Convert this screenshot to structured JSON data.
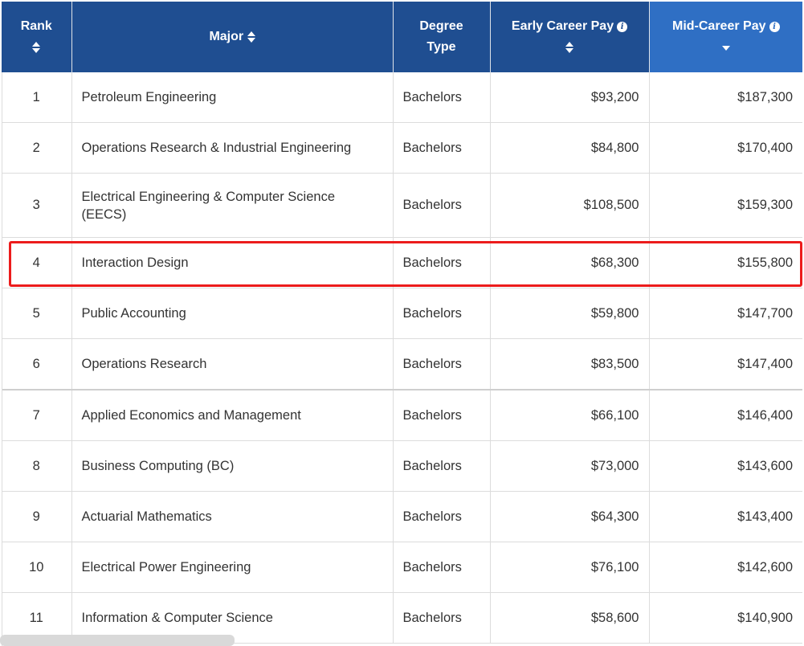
{
  "table": {
    "headers": {
      "rank": "Rank",
      "major": "Major",
      "degree_type_line1": "Degree",
      "degree_type_line2": "Type",
      "early_career_pay": "Early Career Pay",
      "mid_career_pay": "Mid-Career Pay"
    },
    "sorted_column": "Mid-Career Pay",
    "sort_direction": "descending",
    "highlighted_rank": "4",
    "highlight_color": "#ec1c1c",
    "header_color": "#1f4e91",
    "active_header_color": "#2f6fc4",
    "rows": [
      {
        "rank": "1",
        "major": "Petroleum Engineering",
        "degree_type": "Bachelors",
        "early": "$93,200",
        "mid": "$187,300"
      },
      {
        "rank": "2",
        "major": "Operations Research & Industrial Engineering",
        "degree_type": "Bachelors",
        "early": "$84,800",
        "mid": "$170,400"
      },
      {
        "rank": "3",
        "major": "Electrical Engineering & Computer Science (EECS)",
        "degree_type": "Bachelors",
        "early": "$108,500",
        "mid": "$159,300"
      },
      {
        "rank": "4",
        "major": "Interaction Design",
        "degree_type": "Bachelors",
        "early": "$68,300",
        "mid": "$155,800"
      },
      {
        "rank": "5",
        "major": "Public Accounting",
        "degree_type": "Bachelors",
        "early": "$59,800",
        "mid": "$147,700"
      },
      {
        "rank": "6",
        "major": "Operations Research",
        "degree_type": "Bachelors",
        "early": "$83,500",
        "mid": "$147,400"
      },
      {
        "rank": "7",
        "major": "Applied Economics and Management",
        "degree_type": "Bachelors",
        "early": "$66,100",
        "mid": "$146,400"
      },
      {
        "rank": "8",
        "major": "Business Computing (BC)",
        "degree_type": "Bachelors",
        "early": "$73,000",
        "mid": "$143,600"
      },
      {
        "rank": "9",
        "major": "Actuarial Mathematics",
        "degree_type": "Bachelors",
        "early": "$64,300",
        "mid": "$143,400"
      },
      {
        "rank": "10",
        "major": "Electrical Power Engineering",
        "degree_type": "Bachelors",
        "early": "$76,100",
        "mid": "$142,600"
      },
      {
        "rank": "11",
        "major": "Information & Computer Science",
        "degree_type": "Bachelors",
        "early": "$58,600",
        "mid": "$140,900"
      }
    ]
  }
}
